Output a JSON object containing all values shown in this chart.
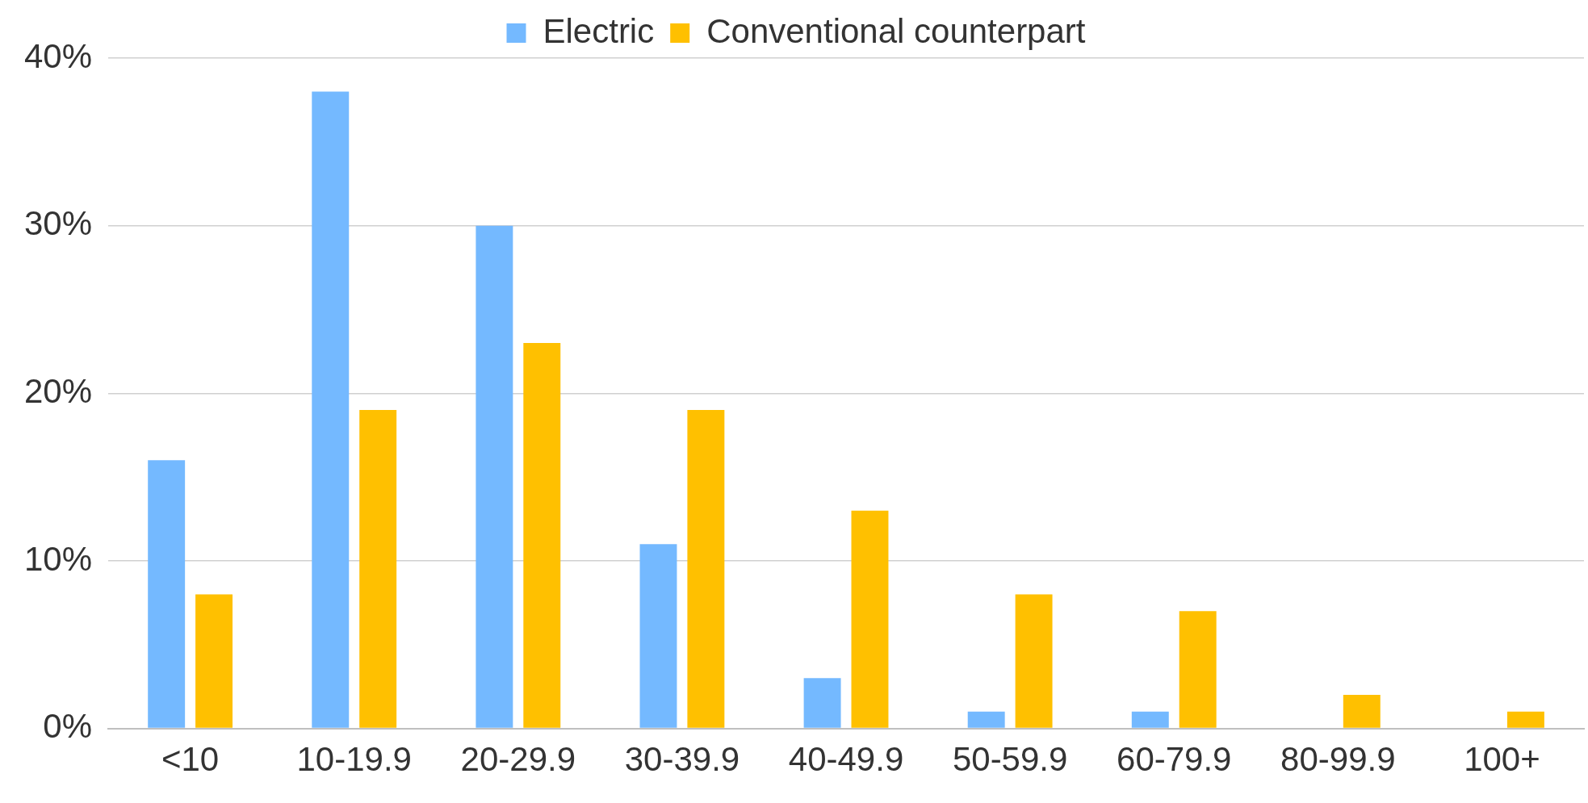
{
  "chart_data": {
    "type": "bar",
    "categories": [
      "<10",
      "10-19.9",
      "20-29.9",
      "30-39.9",
      "40-49.9",
      "50-59.9",
      "60-79.9",
      "80-99.9",
      "100+"
    ],
    "series": [
      {
        "name": "Electric",
        "color": "#74b9ff",
        "values": [
          16,
          38,
          30,
          11,
          3,
          1,
          1,
          0,
          0
        ]
      },
      {
        "name": "Conventional counterpart",
        "color": "#ffc000",
        "values": [
          8,
          19,
          23,
          19,
          13,
          8,
          7,
          2,
          1
        ]
      }
    ],
    "ylim": [
      0,
      40
    ],
    "yticks": [
      {
        "value": 0,
        "label": "0%"
      },
      {
        "value": 10,
        "label": "10%"
      },
      {
        "value": 20,
        "label": "20%"
      },
      {
        "value": 30,
        "label": "30%"
      },
      {
        "value": 40,
        "label": "40%"
      }
    ],
    "grid": "y",
    "legend": "top"
  }
}
